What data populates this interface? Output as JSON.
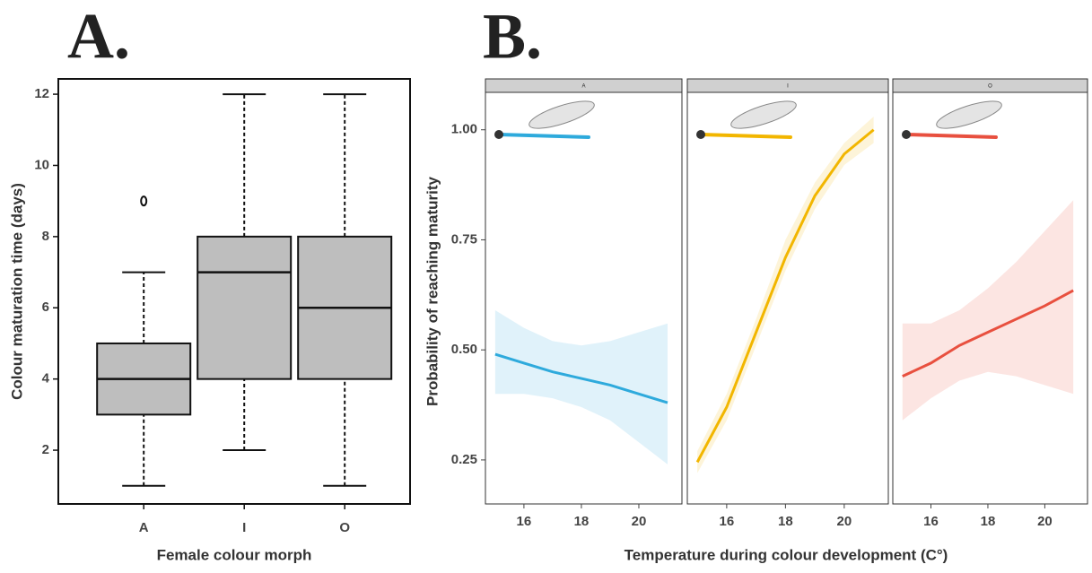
{
  "chart_data": [
    {
      "type": "box",
      "title": "A.",
      "x_label": "Female colour morph",
      "y_label": "Colour maturation time (days)",
      "categories": [
        "A",
        "I",
        "O"
      ],
      "color": "#bebebe",
      "boxes": [
        {
          "min": 1,
          "q1": 3,
          "median": 4,
          "q3": 5,
          "max": 7,
          "outliers": [
            9
          ]
        },
        {
          "min": 2,
          "q1": 4,
          "median": 7,
          "q3": 8,
          "max": 12,
          "outliers": []
        },
        {
          "min": 1,
          "q1": 4,
          "median": 6,
          "q3": 8,
          "max": 12,
          "outliers": []
        }
      ],
      "ylim": [
        0.49,
        12.43
      ],
      "yticks": [
        2,
        4,
        6,
        8,
        10,
        12
      ]
    },
    {
      "type": "facet-line",
      "title": "B.",
      "x_label": "Temperature during colour development (C°)",
      "y_label": "Probability of reaching maturity",
      "xlim": [
        14.66,
        21.5
      ],
      "xticks": [
        16,
        18,
        20
      ],
      "ylim": [
        0.15,
        1.085
      ],
      "yticks": [
        {
          "value": 0.25,
          "label": "0.25"
        },
        {
          "value": 0.5,
          "label": "0.50"
        },
        {
          "value": 0.75,
          "label": "0.75"
        },
        {
          "value": 1,
          "label": "1.00"
        }
      ],
      "series": [
        {
          "name": "A",
          "color": "#2eaadc",
          "x": [
            15,
            16,
            17,
            18,
            19,
            20,
            21
          ],
          "values": [
            0.49,
            0.47,
            0.45,
            0.435,
            0.42,
            0.4,
            0.38
          ],
          "lower": [
            0.4,
            0.4,
            0.39,
            0.37,
            0.34,
            0.29,
            0.24
          ],
          "upper": [
            0.59,
            0.55,
            0.52,
            0.51,
            0.52,
            0.54,
            0.56
          ]
        },
        {
          "name": "I",
          "color": "#f2b600",
          "x": [
            15,
            16,
            17,
            18,
            19,
            20,
            21
          ],
          "values": [
            0.245,
            0.37,
            0.54,
            0.71,
            0.85,
            0.945,
            1.0
          ],
          "lower": [
            0.22,
            0.34,
            0.51,
            0.68,
            0.82,
            0.92,
            0.97
          ],
          "upper": [
            0.27,
            0.4,
            0.57,
            0.75,
            0.88,
            0.97,
            1.03
          ]
        },
        {
          "name": "O",
          "color": "#e8503f",
          "x": [
            15,
            16,
            17,
            18,
            19,
            20,
            21
          ],
          "values": [
            0.44,
            0.47,
            0.51,
            0.54,
            0.57,
            0.6,
            0.635
          ],
          "lower": [
            0.34,
            0.39,
            0.43,
            0.45,
            0.44,
            0.42,
            0.4
          ],
          "upper": [
            0.56,
            0.56,
            0.59,
            0.64,
            0.7,
            0.77,
            0.84
          ]
        }
      ]
    }
  ]
}
